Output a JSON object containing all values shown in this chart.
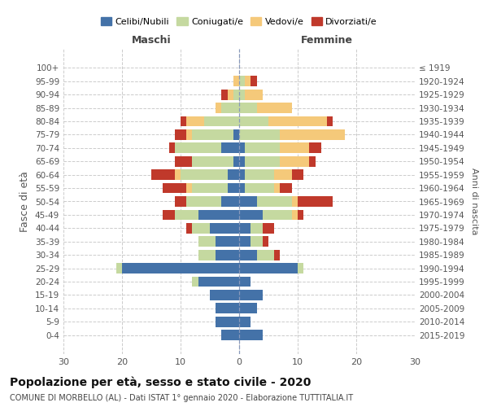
{
  "age_groups": [
    "0-4",
    "5-9",
    "10-14",
    "15-19",
    "20-24",
    "25-29",
    "30-34",
    "35-39",
    "40-44",
    "45-49",
    "50-54",
    "55-59",
    "60-64",
    "65-69",
    "70-74",
    "75-79",
    "80-84",
    "85-89",
    "90-94",
    "95-99",
    "100+"
  ],
  "birth_years": [
    "2015-2019",
    "2010-2014",
    "2005-2009",
    "2000-2004",
    "1995-1999",
    "1990-1994",
    "1985-1989",
    "1980-1984",
    "1975-1979",
    "1970-1974",
    "1965-1969",
    "1960-1964",
    "1955-1959",
    "1950-1954",
    "1945-1949",
    "1940-1944",
    "1935-1939",
    "1930-1934",
    "1925-1929",
    "1920-1924",
    "≤ 1919"
  ],
  "male": {
    "celibe": [
      3,
      4,
      4,
      5,
      7,
      20,
      4,
      4,
      5,
      7,
      3,
      2,
      2,
      1,
      3,
      1,
      0,
      0,
      0,
      0,
      0
    ],
    "coniugato": [
      0,
      0,
      0,
      0,
      1,
      1,
      3,
      3,
      3,
      4,
      6,
      6,
      8,
      7,
      8,
      7,
      6,
      3,
      1,
      0,
      0
    ],
    "vedovo": [
      0,
      0,
      0,
      0,
      0,
      0,
      0,
      0,
      0,
      0,
      0,
      1,
      1,
      0,
      0,
      1,
      3,
      1,
      1,
      1,
      0
    ],
    "divorziato": [
      0,
      0,
      0,
      0,
      0,
      0,
      0,
      0,
      1,
      2,
      2,
      4,
      4,
      3,
      1,
      2,
      1,
      0,
      1,
      0,
      0
    ]
  },
  "female": {
    "nubile": [
      4,
      2,
      3,
      4,
      2,
      10,
      3,
      2,
      2,
      4,
      3,
      1,
      1,
      1,
      1,
      0,
      0,
      0,
      0,
      0,
      0
    ],
    "coniugata": [
      0,
      0,
      0,
      0,
      0,
      1,
      3,
      2,
      2,
      5,
      6,
      5,
      5,
      6,
      6,
      7,
      5,
      3,
      1,
      1,
      0
    ],
    "vedova": [
      0,
      0,
      0,
      0,
      0,
      0,
      0,
      0,
      0,
      1,
      1,
      1,
      3,
      5,
      5,
      11,
      10,
      6,
      3,
      1,
      0
    ],
    "divorziata": [
      0,
      0,
      0,
      0,
      0,
      0,
      1,
      1,
      2,
      1,
      6,
      2,
      2,
      1,
      2,
      0,
      1,
      0,
      0,
      1,
      0
    ]
  },
  "colors": {
    "celibe": "#4472a8",
    "coniugato": "#c5d9a0",
    "vedovo": "#f5c97a",
    "divorziato": "#c0392b"
  },
  "xlim": 30,
  "title": "Popolazione per età, sesso e stato civile - 2020",
  "subtitle": "COMUNE DI MORBELLO (AL) - Dati ISTAT 1° gennaio 2020 - Elaborazione TUTTITALIA.IT",
  "ylabel": "Fasce di età",
  "ylabel_right": "Anni di nascita",
  "legend_labels": [
    "Celibi/Nubili",
    "Coniugati/e",
    "Vedovi/e",
    "Divorziati/e"
  ],
  "maschi_label": "Maschi",
  "femmine_label": "Femmine"
}
